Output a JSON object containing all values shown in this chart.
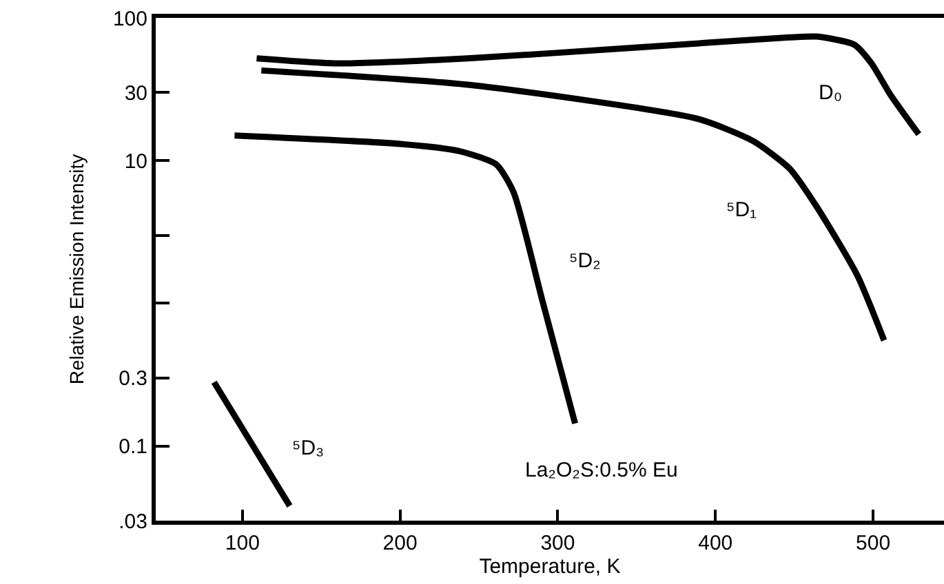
{
  "chart_data": {
    "type": "line",
    "xlabel": "Temperature, K",
    "ylabel": "Relative Emission Intensity",
    "log": "y",
    "xlim": [
      45,
      545
    ],
    "xticks": [
      100,
      200,
      300,
      400,
      500
    ],
    "ylim": [
      0.03,
      100
    ],
    "yticks": [
      {
        "value": 0.03,
        "label": ".03"
      },
      0.1,
      0.3,
      {
        "value": 1,
        "label": null
      },
      {
        "value": 3,
        "label": null
      },
      10,
      30,
      100
    ],
    "legend": false,
    "marker": "none",
    "line_style": "solid",
    "series": [
      {
        "name": "D₀",
        "color": "#000000",
        "x": [
          109,
          160,
          243,
          350,
          447,
          464,
          488,
          499,
          511,
          529
        ],
        "values": [
          52,
          48,
          52,
          62,
          73,
          74,
          65,
          48,
          29,
          15.3
        ]
      },
      {
        "name": "⁵D₁",
        "color": "#000000",
        "x": [
          112,
          243,
          389,
          424,
          447,
          464,
          490,
          507
        ],
        "values": [
          42.8,
          34,
          19.6,
          13.7,
          8.8,
          4.8,
          1.57,
          0.55
        ]
      },
      {
        "name": "⁵D₂",
        "color": "#000000",
        "x": [
          95,
          200,
          237,
          261,
          272,
          290,
          311
        ],
        "values": [
          15,
          13.1,
          11.7,
          9.4,
          6.0,
          1.07,
          0.144
        ]
      },
      {
        "name": "⁵D₃",
        "color": "#000000",
        "x": [
          82,
          130
        ],
        "values": [
          0.28,
          0.038
        ]
      }
    ],
    "annotations": [
      "La₂O₂S:0.5% Eu"
    ]
  }
}
